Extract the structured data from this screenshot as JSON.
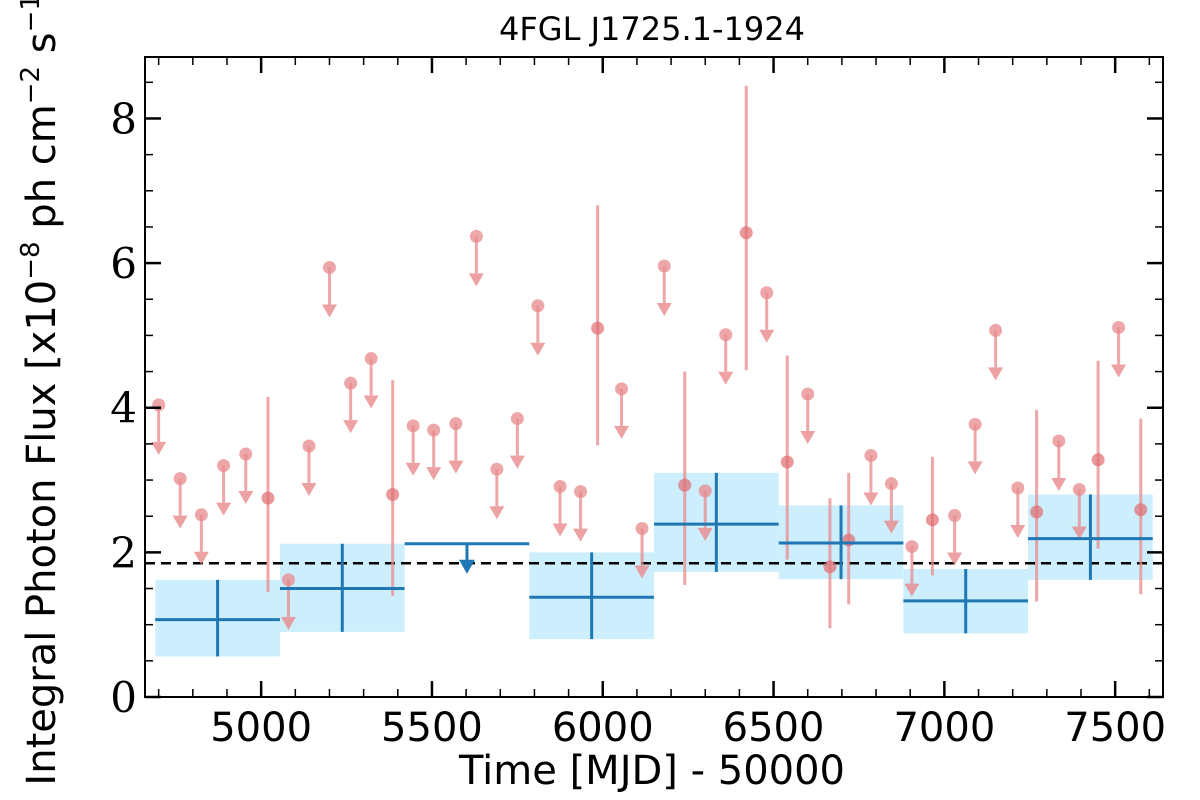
{
  "chart_data": {
    "type": "scatter",
    "title": "4FGL J1725.1-1924",
    "xlabel": "Time [MJD] - 50000",
    "ylabel": "Integral Photon Flux [x10$^{-8}$ ph cm$^{-2}$ s$^{-1}$]",
    "ylabel_parts": {
      "prefix": "Integral Photon Flux [x10",
      "exp1": "−8",
      "mid1": " ph cm",
      "exp2": "−2",
      "mid2": " s",
      "exp3": "−1",
      "suffix": "]"
    },
    "xlim": [
      4660,
      7640
    ],
    "ylim": [
      0,
      8.85
    ],
    "x_major_ticks": [
      5000,
      5500,
      6000,
      6500,
      7000,
      7500
    ],
    "x_tick_labels": [
      "5000",
      "5500",
      "6000",
      "6500",
      "7000",
      "7500"
    ],
    "y_major_ticks": [
      0,
      2,
      4,
      6,
      8
    ],
    "y_tick_labels": [
      "0",
      "2",
      "4",
      "6",
      "8"
    ],
    "mean_flux": 1.85,
    "colors": {
      "short_bins": "#e8898c",
      "long_bins": "#1f77b4",
      "long_bins_band": "#cdeefd",
      "mean_line": "#000000"
    },
    "series": [
      {
        "bin": "short",
        "detections": [
          {
            "x": 5020,
            "y": 2.75,
            "lo": 1.45,
            "hi": 4.15
          },
          {
            "x": 5385,
            "y": 2.8,
            "lo": 1.4,
            "hi": 4.38
          },
          {
            "x": 5985,
            "y": 5.1,
            "lo": 3.48,
            "hi": 6.8
          },
          {
            "x": 6240,
            "y": 2.93,
            "lo": 1.55,
            "hi": 4.5
          },
          {
            "x": 6420,
            "y": 6.42,
            "lo": 4.52,
            "hi": 8.45
          },
          {
            "x": 6540,
            "y": 3.25,
            "lo": 1.9,
            "hi": 4.72
          },
          {
            "x": 6665,
            "y": 1.8,
            "lo": 0.95,
            "hi": 2.75
          },
          {
            "x": 6720,
            "y": 2.17,
            "lo": 1.28,
            "hi": 3.1
          },
          {
            "x": 6965,
            "y": 2.45,
            "lo": 1.68,
            "hi": 3.32
          },
          {
            "x": 7270,
            "y": 2.56,
            "lo": 1.32,
            "hi": 3.97
          },
          {
            "x": 7450,
            "y": 3.28,
            "lo": 2.05,
            "hi": 4.65
          },
          {
            "x": 7575,
            "y": 2.59,
            "lo": 1.42,
            "hi": 3.85
          }
        ],
        "upper_limits": [
          {
            "x": 4700,
            "y": 4.04
          },
          {
            "x": 4763,
            "y": 3.02
          },
          {
            "x": 4825,
            "y": 2.52
          },
          {
            "x": 4890,
            "y": 3.2
          },
          {
            "x": 4955,
            "y": 3.36
          },
          {
            "x": 5080,
            "y": 1.62
          },
          {
            "x": 5140,
            "y": 3.47
          },
          {
            "x": 5200,
            "y": 5.94
          },
          {
            "x": 5262,
            "y": 4.34
          },
          {
            "x": 5322,
            "y": 4.68
          },
          {
            "x": 5445,
            "y": 3.75
          },
          {
            "x": 5505,
            "y": 3.69
          },
          {
            "x": 5570,
            "y": 3.78
          },
          {
            "x": 5630,
            "y": 6.37
          },
          {
            "x": 5690,
            "y": 3.15
          },
          {
            "x": 5750,
            "y": 3.85
          },
          {
            "x": 5810,
            "y": 5.41
          },
          {
            "x": 5875,
            "y": 2.91
          },
          {
            "x": 5935,
            "y": 2.84
          },
          {
            "x": 6055,
            "y": 4.26
          },
          {
            "x": 6115,
            "y": 2.33
          },
          {
            "x": 6180,
            "y": 5.96
          },
          {
            "x": 6300,
            "y": 2.85
          },
          {
            "x": 6360,
            "y": 5.01
          },
          {
            "x": 6480,
            "y": 5.59
          },
          {
            "x": 6600,
            "y": 4.19
          },
          {
            "x": 6785,
            "y": 3.34
          },
          {
            "x": 6845,
            "y": 2.95
          },
          {
            "x": 6905,
            "y": 2.08
          },
          {
            "x": 7030,
            "y": 2.51
          },
          {
            "x": 7090,
            "y": 3.77
          },
          {
            "x": 7215,
            "y": 2.89
          },
          {
            "x": 7150,
            "y": 5.07
          },
          {
            "x": 7335,
            "y": 3.54
          },
          {
            "x": 7395,
            "y": 2.87
          },
          {
            "x": 7510,
            "y": 5.11
          }
        ]
      },
      {
        "bin": "long",
        "detections": [
          {
            "x0": 4690,
            "x1": 5055,
            "y": 1.07,
            "lo": 0.56,
            "hi": 1.62
          },
          {
            "x0": 5055,
            "x1": 5420,
            "y": 1.5,
            "lo": 0.9,
            "hi": 2.12
          },
          {
            "x0": 5785,
            "x1": 6150,
            "y": 1.38,
            "lo": 0.8,
            "hi": 2.0
          },
          {
            "x0": 6150,
            "x1": 6515,
            "y": 2.39,
            "lo": 1.73,
            "hi": 3.1
          },
          {
            "x0": 6515,
            "x1": 6880,
            "y": 2.13,
            "lo": 1.63,
            "hi": 2.65
          },
          {
            "x0": 6880,
            "x1": 7245,
            "y": 1.33,
            "lo": 0.88,
            "hi": 1.77
          },
          {
            "x0": 7245,
            "x1": 7610,
            "y": 2.19,
            "lo": 1.62,
            "hi": 2.8
          }
        ],
        "upper_limits": [
          {
            "x0": 5420,
            "x1": 5785,
            "y": 2.12
          }
        ]
      }
    ]
  }
}
